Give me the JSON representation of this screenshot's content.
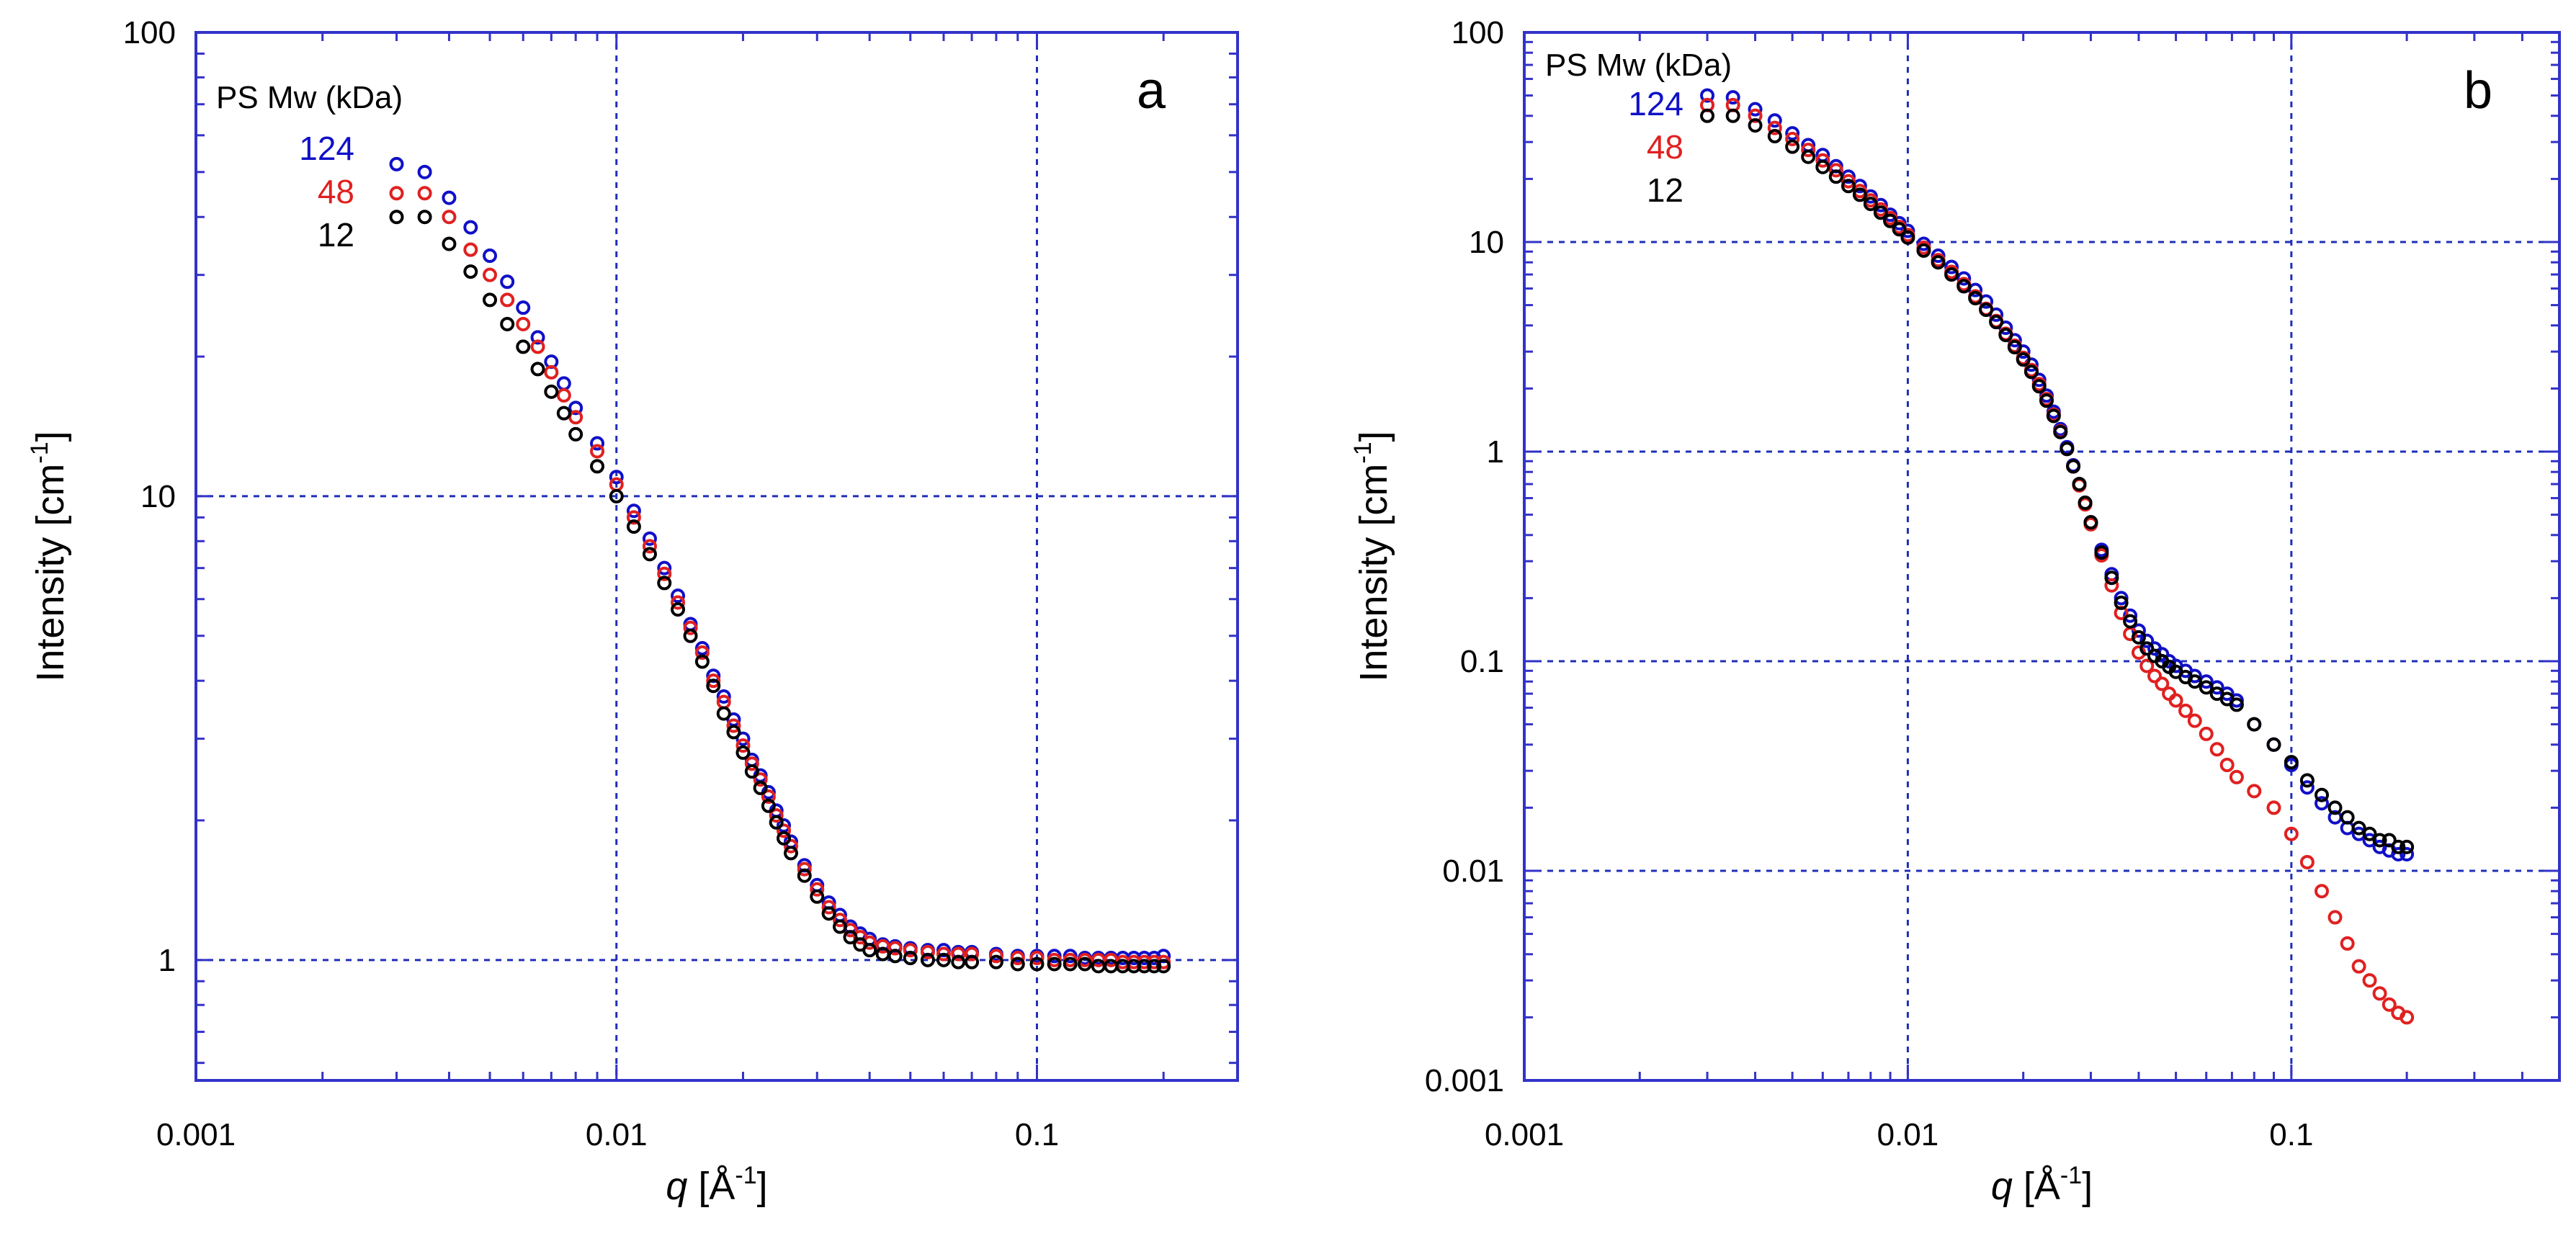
{
  "chart_data": [
    {
      "type": "scatter",
      "panel_label": "a",
      "title": "",
      "xlabel_symbol": "q",
      "xlabel_unit": " [Å",
      "xlabel_sup": "-1",
      "xlabel_close": "]",
      "ylabel_main": "Intensity [cm",
      "ylabel_sup": "-1",
      "ylabel_close": "]",
      "xscale": "log",
      "yscale": "log",
      "xlim": [
        0.001,
        0.3
      ],
      "ylim": [
        0.55,
        100
      ],
      "grid": true,
      "xticks": [
        0.001,
        0.01,
        0.1
      ],
      "xtick_labels": [
        "0.001",
        "0.01",
        "0.1"
      ],
      "yticks": [
        1,
        10,
        100
      ],
      "ytick_labels": [
        "1",
        "10",
        "100"
      ],
      "legend_title": "PS Mw (kDa)",
      "legend_position": "top-left",
      "series": [
        {
          "name": "124",
          "color": "#1010c8",
          "x": [
            0.003,
            0.0035,
            0.004,
            0.0045,
            0.005,
            0.0055,
            0.006,
            0.0065,
            0.007,
            0.0075,
            0.008,
            0.009,
            0.01,
            0.011,
            0.012,
            0.013,
            0.014,
            0.015,
            0.016,
            0.017,
            0.018,
            0.019,
            0.02,
            0.021,
            0.022,
            0.023,
            0.024,
            0.025,
            0.026,
            0.028,
            0.03,
            0.032,
            0.034,
            0.036,
            0.038,
            0.04,
            0.043,
            0.046,
            0.05,
            0.055,
            0.06,
            0.065,
            0.07,
            0.08,
            0.09,
            0.1,
            0.11,
            0.12,
            0.13,
            0.14,
            0.15,
            0.16,
            0.17,
            0.18,
            0.19,
            0.2
          ],
          "y": [
            52,
            50,
            44,
            38,
            33,
            29,
            25.5,
            22,
            19.5,
            17.5,
            15.5,
            13,
            11,
            9.3,
            8.1,
            7.0,
            6.1,
            5.3,
            4.7,
            4.1,
            3.7,
            3.3,
            3.0,
            2.7,
            2.5,
            2.3,
            2.1,
            1.95,
            1.8,
            1.6,
            1.45,
            1.33,
            1.25,
            1.18,
            1.14,
            1.11,
            1.08,
            1.07,
            1.06,
            1.05,
            1.05,
            1.04,
            1.04,
            1.03,
            1.02,
            1.02,
            1.02,
            1.02,
            1.01,
            1.01,
            1.01,
            1.01,
            1.01,
            1.01,
            1.01,
            1.02
          ]
        },
        {
          "name": "48",
          "color": "#e02020",
          "x": [
            0.003,
            0.0035,
            0.004,
            0.0045,
            0.005,
            0.0055,
            0.006,
            0.0065,
            0.007,
            0.0075,
            0.008,
            0.009,
            0.01,
            0.011,
            0.012,
            0.013,
            0.014,
            0.015,
            0.016,
            0.017,
            0.018,
            0.019,
            0.02,
            0.021,
            0.022,
            0.023,
            0.024,
            0.025,
            0.026,
            0.028,
            0.03,
            0.032,
            0.034,
            0.036,
            0.038,
            0.04,
            0.043,
            0.046,
            0.05,
            0.055,
            0.06,
            0.065,
            0.07,
            0.08,
            0.09,
            0.1,
            0.11,
            0.12,
            0.13,
            0.14,
            0.15,
            0.16,
            0.17,
            0.18,
            0.19,
            0.2
          ],
          "y": [
            45,
            45,
            40,
            34,
            30,
            26.5,
            23.5,
            21,
            18.5,
            16.5,
            14.8,
            12.5,
            10.6,
            9.0,
            7.8,
            6.8,
            5.9,
            5.2,
            4.6,
            4.0,
            3.6,
            3.2,
            2.9,
            2.65,
            2.45,
            2.25,
            2.05,
            1.9,
            1.76,
            1.57,
            1.42,
            1.3,
            1.22,
            1.16,
            1.12,
            1.09,
            1.07,
            1.06,
            1.05,
            1.04,
            1.03,
            1.03,
            1.03,
            1.02,
            1.01,
            1.01,
            1.0,
            1.0,
            1.0,
            1.0,
            1.0,
            0.99,
            0.99,
            0.99,
            0.99,
            0.99
          ]
        },
        {
          "name": "12",
          "color": "#000000",
          "x": [
            0.003,
            0.0035,
            0.004,
            0.0045,
            0.005,
            0.0055,
            0.006,
            0.0065,
            0.007,
            0.0075,
            0.008,
            0.009,
            0.01,
            0.011,
            0.012,
            0.013,
            0.014,
            0.015,
            0.016,
            0.017,
            0.018,
            0.019,
            0.02,
            0.021,
            0.022,
            0.023,
            0.024,
            0.025,
            0.026,
            0.028,
            0.03,
            0.032,
            0.034,
            0.036,
            0.038,
            0.04,
            0.043,
            0.046,
            0.05,
            0.055,
            0.06,
            0.065,
            0.07,
            0.08,
            0.09,
            0.1,
            0.11,
            0.12,
            0.13,
            0.14,
            0.15,
            0.16,
            0.17,
            0.18,
            0.19,
            0.2
          ],
          "y": [
            40,
            40,
            35,
            30.5,
            26.5,
            23.5,
            21,
            18.8,
            16.8,
            15.1,
            13.6,
            11.6,
            10.0,
            8.6,
            7.5,
            6.5,
            5.7,
            5.0,
            4.4,
            3.9,
            3.4,
            3.1,
            2.8,
            2.55,
            2.35,
            2.15,
            1.98,
            1.83,
            1.7,
            1.52,
            1.37,
            1.26,
            1.18,
            1.12,
            1.08,
            1.05,
            1.03,
            1.02,
            1.01,
            1.0,
            1.0,
            0.99,
            0.99,
            0.99,
            0.98,
            0.98,
            0.98,
            0.98,
            0.98,
            0.97,
            0.97,
            0.97,
            0.97,
            0.97,
            0.97,
            0.97
          ]
        }
      ]
    },
    {
      "type": "scatter",
      "panel_label": "b",
      "title": "",
      "xlabel_symbol": "q",
      "xlabel_unit": " [Å",
      "xlabel_sup": "-1",
      "xlabel_close": "]",
      "ylabel_main": "Intensity [cm",
      "ylabel_sup": "-1",
      "ylabel_close": "]",
      "xscale": "log",
      "yscale": "log",
      "xlim": [
        0.001,
        0.5
      ],
      "ylim": [
        0.001,
        100
      ],
      "grid": true,
      "xticks": [
        0.001,
        0.01,
        0.1
      ],
      "xtick_labels": [
        "0.001",
        "0.01",
        "0.1"
      ],
      "yticks": [
        0.001,
        0.01,
        0.1,
        1,
        10,
        100
      ],
      "ytick_labels": [
        "0.001",
        "0.01",
        "0.1",
        "1",
        "10",
        "100"
      ],
      "legend_title": "PS Mw (kDa)",
      "legend_position": "top-left",
      "series": [
        {
          "name": "124",
          "color": "#1010c8",
          "x": [
            0.003,
            0.0035,
            0.004,
            0.0045,
            0.005,
            0.0055,
            0.006,
            0.0065,
            0.007,
            0.0075,
            0.008,
            0.0085,
            0.009,
            0.0095,
            0.01,
            0.011,
            0.012,
            0.013,
            0.014,
            0.015,
            0.016,
            0.017,
            0.018,
            0.019,
            0.02,
            0.021,
            0.022,
            0.023,
            0.024,
            0.025,
            0.026,
            0.027,
            0.028,
            0.029,
            0.03,
            0.032,
            0.034,
            0.036,
            0.038,
            0.04,
            0.042,
            0.044,
            0.046,
            0.048,
            0.05,
            0.053,
            0.056,
            0.06,
            0.064,
            0.068,
            0.072,
            0.08,
            0.09,
            0.1,
            0.11,
            0.12,
            0.13,
            0.14,
            0.15,
            0.16,
            0.17,
            0.18,
            0.19,
            0.2
          ],
          "y": [
            50,
            49,
            43,
            38,
            33,
            29,
            26,
            23,
            20.5,
            18.5,
            16.5,
            15,
            13.5,
            12.3,
            11.3,
            9.8,
            8.6,
            7.6,
            6.7,
            5.9,
            5.2,
            4.5,
            3.9,
            3.4,
            3.0,
            2.6,
            2.2,
            1.85,
            1.55,
            1.28,
            1.05,
            0.86,
            0.7,
            0.57,
            0.46,
            0.34,
            0.26,
            0.2,
            0.165,
            0.14,
            0.125,
            0.115,
            0.108,
            0.1,
            0.095,
            0.09,
            0.085,
            0.08,
            0.075,
            0.07,
            0.065,
            0.05,
            0.04,
            0.032,
            0.025,
            0.021,
            0.018,
            0.016,
            0.015,
            0.014,
            0.013,
            0.0125,
            0.012,
            0.012
          ]
        },
        {
          "name": "48",
          "color": "#e02020",
          "x": [
            0.003,
            0.0035,
            0.004,
            0.0045,
            0.005,
            0.0055,
            0.006,
            0.0065,
            0.007,
            0.0075,
            0.008,
            0.0085,
            0.009,
            0.0095,
            0.01,
            0.011,
            0.012,
            0.013,
            0.014,
            0.015,
            0.016,
            0.017,
            0.018,
            0.019,
            0.02,
            0.021,
            0.022,
            0.023,
            0.024,
            0.025,
            0.026,
            0.027,
            0.028,
            0.029,
            0.03,
            0.032,
            0.034,
            0.036,
            0.038,
            0.04,
            0.042,
            0.044,
            0.046,
            0.048,
            0.05,
            0.053,
            0.056,
            0.06,
            0.064,
            0.068,
            0.072,
            0.08,
            0.09,
            0.1,
            0.11,
            0.12,
            0.13,
            0.14,
            0.15,
            0.16,
            0.17,
            0.18,
            0.19,
            0.2
          ],
          "y": [
            45,
            45,
            40,
            35,
            31,
            27.5,
            24.5,
            22,
            19.5,
            17.5,
            15.8,
            14.3,
            13,
            11.8,
            10.8,
            9.4,
            8.2,
            7.2,
            6.3,
            5.5,
            4.8,
            4.2,
            3.65,
            3.2,
            2.8,
            2.45,
            2.1,
            1.78,
            1.5,
            1.25,
            1.03,
            0.85,
            0.69,
            0.56,
            0.45,
            0.32,
            0.23,
            0.17,
            0.135,
            0.11,
            0.095,
            0.085,
            0.078,
            0.07,
            0.065,
            0.058,
            0.052,
            0.045,
            0.038,
            0.032,
            0.028,
            0.024,
            0.02,
            0.015,
            0.011,
            0.008,
            0.006,
            0.0045,
            0.0035,
            0.003,
            0.0026,
            0.0023,
            0.0021,
            0.002
          ]
        },
        {
          "name": "12",
          "color": "#000000",
          "x": [
            0.003,
            0.0035,
            0.004,
            0.0045,
            0.005,
            0.0055,
            0.006,
            0.0065,
            0.007,
            0.0075,
            0.008,
            0.0085,
            0.009,
            0.0095,
            0.01,
            0.011,
            0.012,
            0.013,
            0.014,
            0.015,
            0.016,
            0.017,
            0.018,
            0.019,
            0.02,
            0.021,
            0.022,
            0.023,
            0.024,
            0.025,
            0.026,
            0.027,
            0.028,
            0.029,
            0.03,
            0.032,
            0.034,
            0.036,
            0.038,
            0.04,
            0.042,
            0.044,
            0.046,
            0.048,
            0.05,
            0.053,
            0.056,
            0.06,
            0.064,
            0.068,
            0.072,
            0.08,
            0.09,
            0.1,
            0.11,
            0.12,
            0.13,
            0.14,
            0.15,
            0.16,
            0.17,
            0.18,
            0.19,
            0.2
          ],
          "y": [
            40,
            40,
            36,
            32,
            28.5,
            25.5,
            22.8,
            20.5,
            18.5,
            16.8,
            15.2,
            13.8,
            12.6,
            11.5,
            10.5,
            9.1,
            8.0,
            7.0,
            6.15,
            5.4,
            4.75,
            4.15,
            3.6,
            3.15,
            2.75,
            2.4,
            2.05,
            1.75,
            1.48,
            1.24,
            1.03,
            0.85,
            0.7,
            0.57,
            0.46,
            0.33,
            0.25,
            0.19,
            0.155,
            0.13,
            0.115,
            0.106,
            0.1,
            0.094,
            0.089,
            0.084,
            0.08,
            0.075,
            0.07,
            0.066,
            0.062,
            0.05,
            0.04,
            0.033,
            0.027,
            0.023,
            0.02,
            0.018,
            0.016,
            0.015,
            0.014,
            0.014,
            0.013,
            0.013
          ]
        }
      ]
    }
  ]
}
